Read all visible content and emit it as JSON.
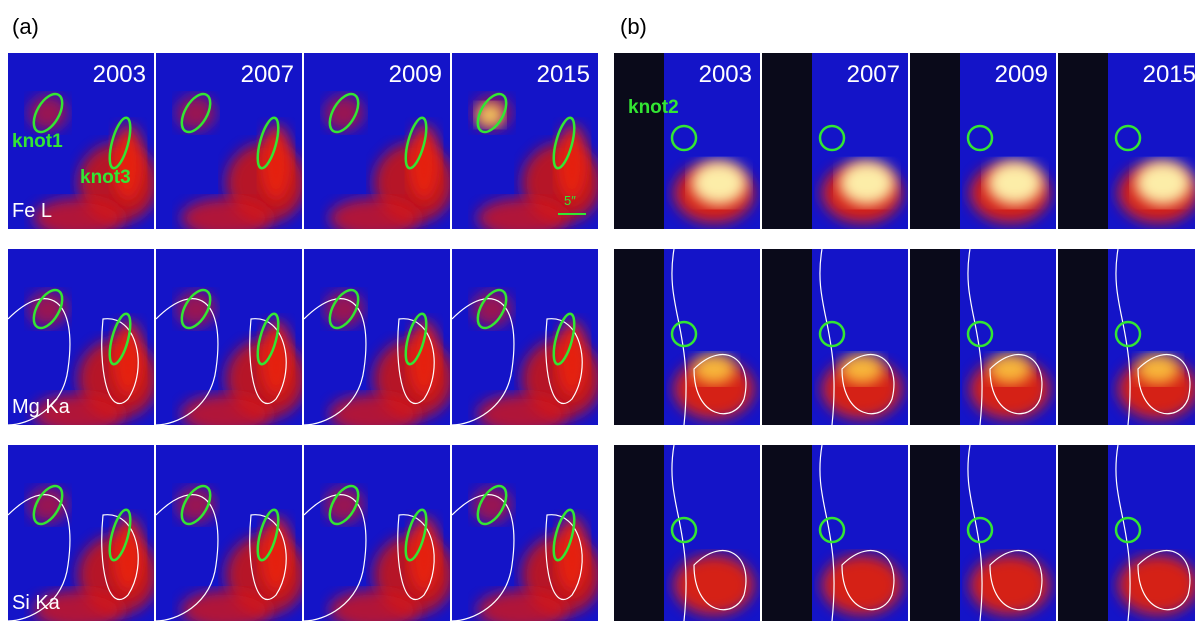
{
  "panels": [
    {
      "label": "(a)",
      "years": [
        "2003",
        "2007",
        "2009",
        "2015"
      ],
      "rows": [
        "Fe L",
        "Mg Ka",
        "Si Ka"
      ],
      "knots": [
        "knot1",
        "knot3"
      ],
      "scale": "5″"
    },
    {
      "label": "(b)",
      "years": [
        "2003",
        "2007",
        "2009",
        "2015"
      ],
      "knots": [
        "knot2"
      ]
    }
  ],
  "colors": {
    "region_marker": "#33e633",
    "contour": "#ffffff",
    "background": "#0b0b6e"
  }
}
